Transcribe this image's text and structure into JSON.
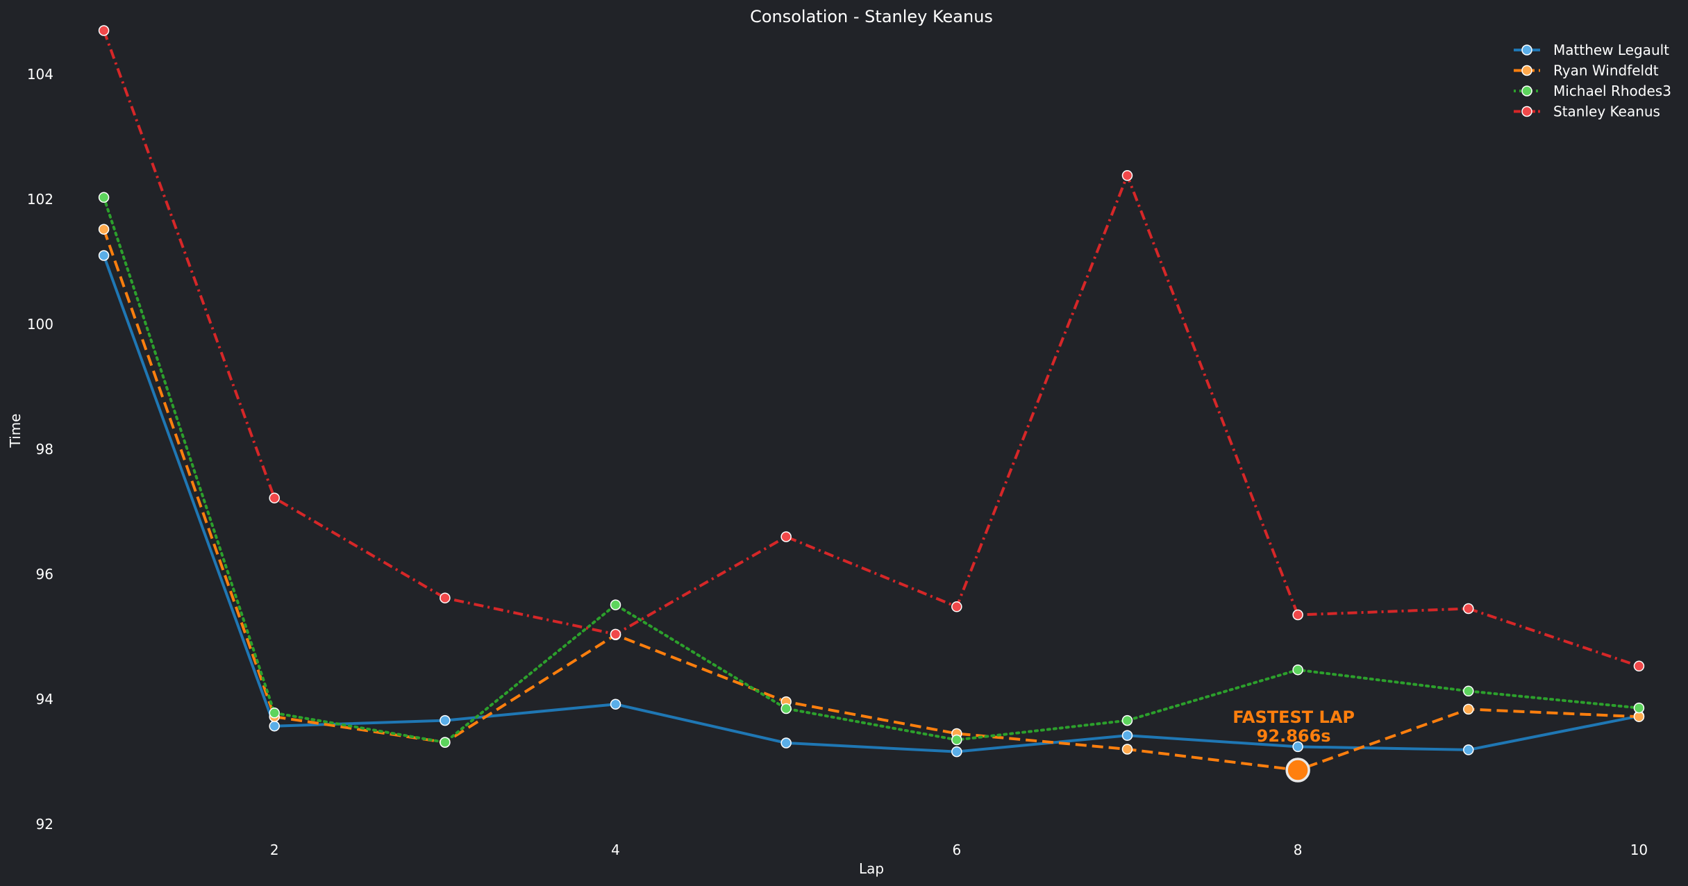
{
  "chart_data": {
    "type": "line",
    "title": "Consolation - Stanley Keanus",
    "xlabel": "Lap",
    "ylabel": "Time",
    "x": [
      1,
      2,
      3,
      4,
      5,
      6,
      7,
      8,
      9,
      10
    ],
    "xticks": [
      2,
      4,
      6,
      8,
      10
    ],
    "yticks": [
      92,
      94,
      96,
      98,
      100,
      102,
      104
    ],
    "xlim": [
      0.9,
      10.1
    ],
    "ylim": [
      91.7,
      104.9
    ],
    "grid": false,
    "legend_position": "top-right",
    "series": [
      {
        "name": "Matthew Legault",
        "color": "#1f77b4",
        "marker_fill": "#5aaee8",
        "style": "solid",
        "values": [
          101.1,
          93.57,
          93.66,
          93.92,
          93.3,
          93.16,
          93.42,
          93.24,
          93.19,
          93.73
        ]
      },
      {
        "name": "Ryan Windfeldt",
        "color": "#ff7f0e",
        "marker_fill": "#ffa94d",
        "style": "dashed",
        "values": [
          101.52,
          93.72,
          93.31,
          95.03,
          93.96,
          93.45,
          93.2,
          92.866,
          93.84,
          93.72
        ]
      },
      {
        "name": "Michael Rhodes3",
        "color": "#2ca02c",
        "marker_fill": "#5dd45d",
        "style": "dotted",
        "values": [
          102.03,
          93.78,
          93.31,
          95.51,
          93.85,
          93.35,
          93.66,
          94.47,
          94.13,
          93.86
        ]
      },
      {
        "name": "Stanley Keanus",
        "color": "#d62728",
        "marker_fill": "#f0484a",
        "style": "dashdot",
        "values": [
          104.7,
          97.22,
          95.62,
          95.04,
          96.6,
          95.48,
          102.38,
          95.35,
          95.45,
          94.53
        ]
      }
    ],
    "annotation": {
      "line1": "FASTEST LAP",
      "line2": "92.866s",
      "color": "#ff7f0e",
      "series": "Ryan Windfeldt",
      "x": 8,
      "y": 92.866
    }
  }
}
